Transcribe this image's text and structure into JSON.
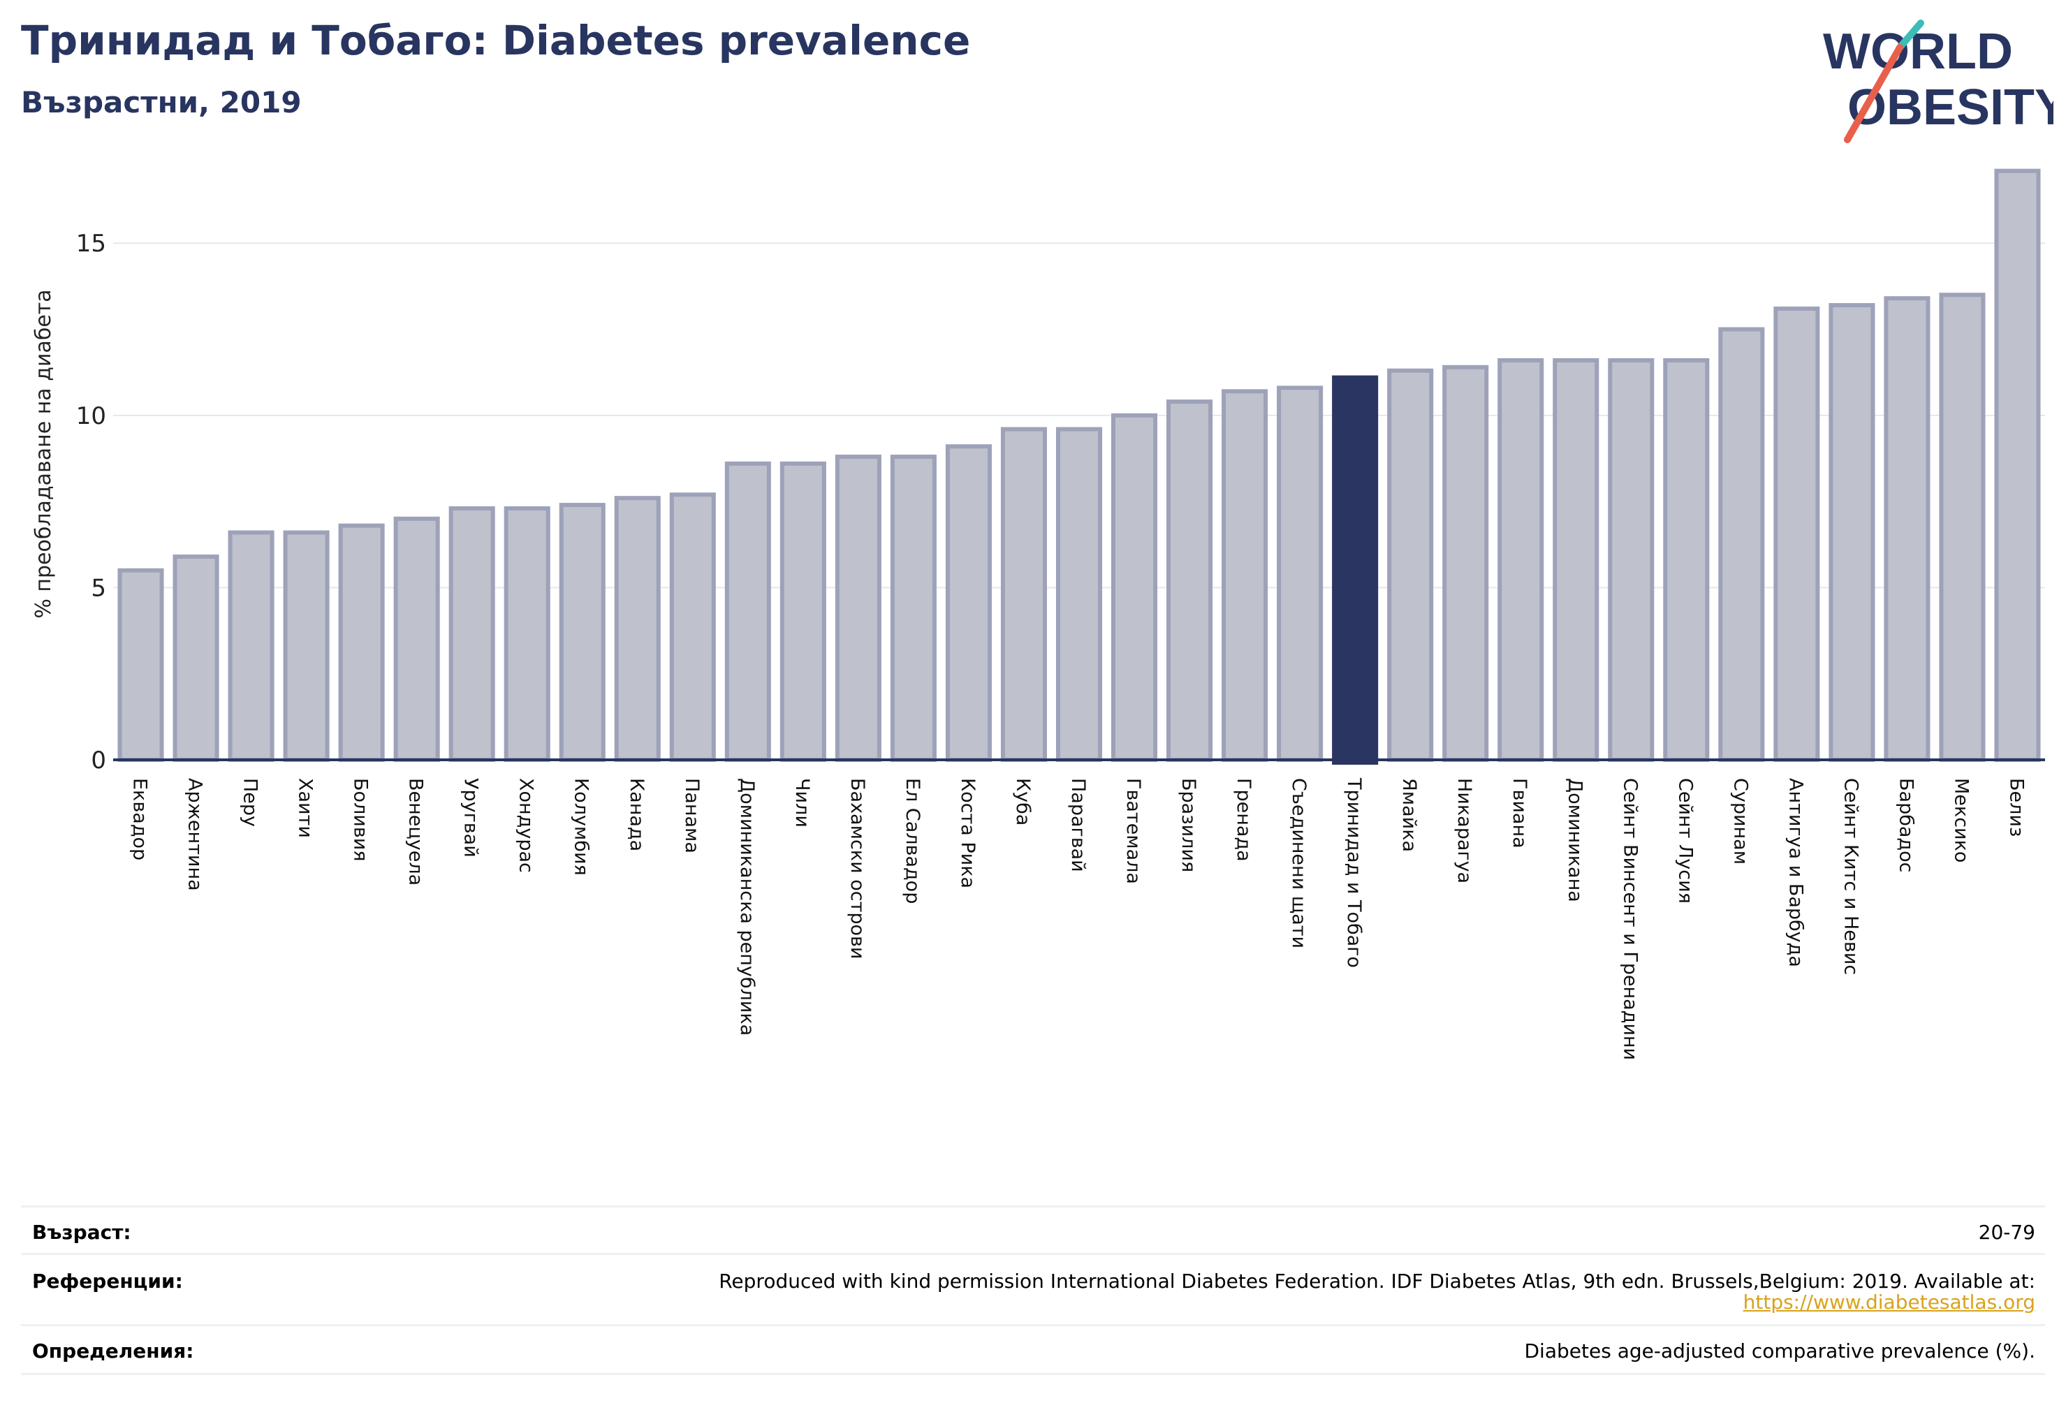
{
  "header": {
    "title": "Тринидад и Тобаго: Diabetes prevalence",
    "subtitle": "Възрастни, 2019"
  },
  "logo": {
    "line1": "WORLD",
    "line2": "OBESITY"
  },
  "chart_data": {
    "type": "bar",
    "title": "Тринидад и Тобаго: Diabetes prevalence",
    "subtitle": "Възрастни, 2019",
    "ylabel": "% преобладаване на диабета",
    "xlabel": "",
    "ylim": [
      0,
      17.6
    ],
    "yticks": [
      0,
      5,
      10,
      15
    ],
    "highlight": "Тринидад и Тобаго",
    "colors": {
      "bar": "#bfc1cd",
      "bar_edge": "#9ea2b8",
      "highlight": "#2b3561",
      "axis": "#283560",
      "grid": "#e6e7ee"
    },
    "categories": [
      "Еквадор",
      "Аржентина",
      "Перу",
      "Хаити",
      "Боливия",
      "Венецуела",
      "Уругвай",
      "Хондурас",
      "Колумбия",
      "Канада",
      "Панама",
      "Доминиканска република",
      "Чили",
      "Бахамски острови",
      "Ел Салвадор",
      "Коста Рика",
      "Куба",
      "Парагвай",
      "Гватемала",
      "Бразилия",
      "Гренада",
      "Съединени щати",
      "Тринидад и Тобаго",
      "Ямайка",
      "Никарагуа",
      "Гвиана",
      "Доминикана",
      "Сейнт Винсент и Гренадини",
      "Сейнт Лусия",
      "Суринам",
      "Антигуа и Барбуда",
      "Сейнт Китс и Невис",
      "Барбадос",
      "Мексико",
      "Белиз"
    ],
    "values": [
      5.5,
      5.9,
      6.6,
      6.6,
      6.8,
      7.0,
      7.3,
      7.3,
      7.4,
      7.6,
      7.7,
      8.6,
      8.6,
      8.8,
      8.8,
      9.1,
      9.6,
      9.6,
      10.0,
      10.4,
      10.7,
      10.8,
      11.1,
      11.3,
      11.4,
      11.6,
      11.6,
      11.6,
      11.6,
      12.5,
      13.1,
      13.2,
      13.4,
      13.5,
      17.1
    ]
  },
  "footer": {
    "age": {
      "label": "Възраст:",
      "value": "20-79"
    },
    "references": {
      "label": "Референции:",
      "value": "Reproduced with kind permission International Diabetes Federation. IDF Diabetes Atlas, 9th edn. Brussels,Belgium: 2019. Available at:",
      "link": "https://www.diabetesatlas.org"
    },
    "definitions": {
      "label": "Определения:",
      "value": "Diabetes age-adjusted comparative prevalence (%)."
    }
  }
}
